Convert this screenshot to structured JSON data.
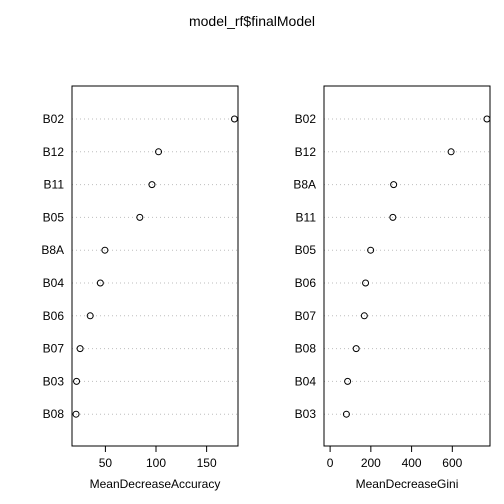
{
  "title": "model_rf$finalModel",
  "chart_data": [
    {
      "type": "scatter",
      "subtype": "dotchart",
      "xlabel": "MeanDecreaseAccuracy",
      "categories": [
        "B02",
        "B12",
        "B11",
        "B05",
        "B8A",
        "B04",
        "B06",
        "B07",
        "B03",
        "B08"
      ],
      "values": [
        177.5,
        102.5,
        96.0,
        84.0,
        49.5,
        45.0,
        35.0,
        25.0,
        21.5,
        21.0
      ],
      "xticks": [
        50,
        100,
        150
      ],
      "xlim": [
        17,
        181
      ],
      "grid": "horizontal dotted"
    },
    {
      "type": "scatter",
      "subtype": "dotchart",
      "xlabel": "MeanDecreaseGini",
      "categories": [
        "B02",
        "B12",
        "B8A",
        "B11",
        "B05",
        "B06",
        "B07",
        "B08",
        "B04",
        "B03"
      ],
      "values": [
        770,
        594,
        312,
        308,
        199,
        174,
        168,
        128,
        86,
        80
      ],
      "xticks": [
        0,
        200,
        400,
        600
      ],
      "xlim": [
        -30,
        785
      ],
      "grid": "horizontal dotted"
    }
  ]
}
